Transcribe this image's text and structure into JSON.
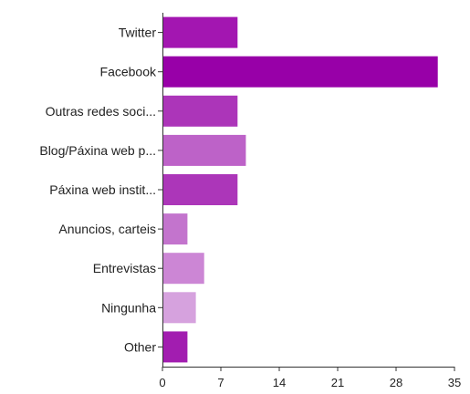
{
  "chart_data": {
    "type": "bar",
    "orientation": "horizontal",
    "categories": [
      "Twitter",
      "Facebook",
      "Outras redes soci...",
      "Blog/Páxina web p...",
      "Páxina web instit...",
      "Anuncios, carteis",
      "Entrevistas",
      "Ningunha",
      "Other"
    ],
    "values": [
      9,
      33,
      9,
      10,
      9,
      3,
      5,
      4,
      3
    ],
    "colors": [
      "#a316b1",
      "#9800a8",
      "#ac35b9",
      "#bd62c8",
      "#ac36b9",
      "#c374cd",
      "#cc86d5",
      "#d6a2de",
      "#a21db0"
    ],
    "xticks": [
      0,
      7,
      14,
      21,
      28,
      35
    ],
    "xlim": [
      0,
      35
    ],
    "grid": false,
    "legend": "none",
    "title": "",
    "xlabel": "",
    "ylabel": ""
  }
}
